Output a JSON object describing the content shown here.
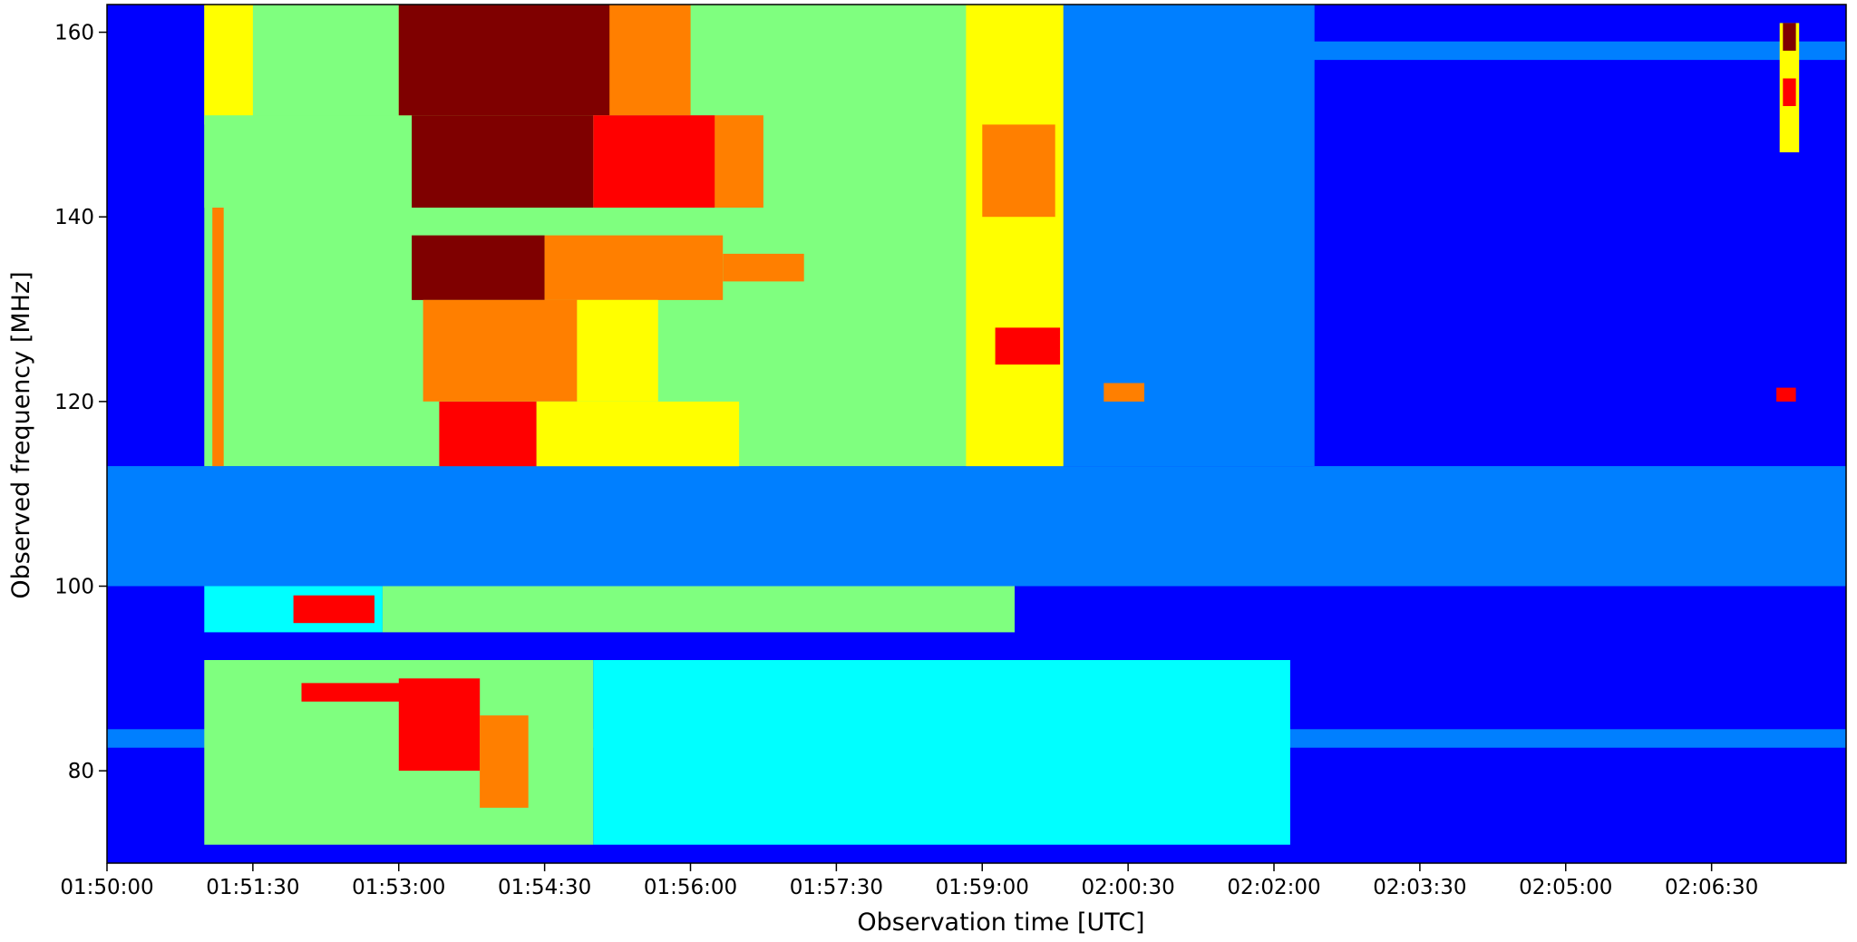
{
  "chart_data": {
    "type": "heatmap",
    "title": "",
    "xlabel": "Observation time [UTC]",
    "ylabel": "Observed frequency [MHz]",
    "x_ticks": [
      "01:50:00",
      "01:51:30",
      "01:53:00",
      "01:54:30",
      "01:56:00",
      "01:57:30",
      "01:59:00",
      "02:00:30",
      "02:02:00",
      "02:03:30",
      "02:05:00",
      "02:06:30"
    ],
    "x_tick_seconds": [
      0,
      90,
      180,
      270,
      360,
      450,
      540,
      630,
      720,
      810,
      900,
      990
    ],
    "xlim_seconds": [
      0,
      1073
    ],
    "y_ticks": [
      80,
      100,
      120,
      140,
      160
    ],
    "ylim": [
      70,
      163
    ],
    "colormap": "jet",
    "colormap_stops": [
      "#00007f",
      "#0000ff",
      "#007fff",
      "#00ffff",
      "#7fff7f",
      "#ffff00",
      "#ff7f00",
      "#ff0000",
      "#7f0000"
    ],
    "background_level": 0.1,
    "emission_regions": [
      {
        "t": [
          60,
          1073
        ],
        "f": [
          157,
          159
        ],
        "level": 0.3
      },
      {
        "t": [
          0,
          1073
        ],
        "f": [
          100,
          113
        ],
        "level": 0.2
      },
      {
        "t": [
          0,
          1073
        ],
        "f": [
          82.5,
          84.5
        ],
        "level": 0.28
      },
      {
        "t": [
          60,
          590
        ],
        "f": [
          113,
          163
        ],
        "level": 0.5
      },
      {
        "t": [
          590,
          745
        ],
        "f": [
          113,
          163
        ],
        "level": 0.28
      },
      {
        "t": [
          530,
          590
        ],
        "f": [
          113,
          163
        ],
        "level": 0.62
      },
      {
        "t": [
          540,
          585
        ],
        "f": [
          140,
          150
        ],
        "level": 0.74
      },
      {
        "t": [
          548,
          588
        ],
        "f": [
          124,
          128
        ],
        "level": 0.82
      },
      {
        "t": [
          65,
          72
        ],
        "f": [
          113,
          163
        ],
        "level": 0.8
      },
      {
        "t": [
          60,
          90
        ],
        "f": [
          150,
          163
        ],
        "level": 0.65
      },
      {
        "t": [
          60,
          200
        ],
        "f": [
          141,
          151
        ],
        "level": 0.45
      },
      {
        "t": [
          180,
          360
        ],
        "f": [
          151,
          163
        ],
        "level": 0.75
      },
      {
        "t": [
          180,
          310
        ],
        "f": [
          151,
          163
        ],
        "level": 0.95
      },
      {
        "t": [
          188,
          300
        ],
        "f": [
          141,
          151
        ],
        "level": 0.98
      },
      {
        "t": [
          300,
          375
        ],
        "f": [
          141,
          151
        ],
        "level": 0.85
      },
      {
        "t": [
          375,
          405
        ],
        "f": [
          141,
          151
        ],
        "level": 0.72
      },
      {
        "t": [
          188,
          270
        ],
        "f": [
          131,
          138
        ],
        "level": 0.95
      },
      {
        "t": [
          270,
          380
        ],
        "f": [
          131,
          138
        ],
        "level": 0.7
      },
      {
        "t": [
          380,
          430
        ],
        "f": [
          133,
          136
        ],
        "level": 0.78
      },
      {
        "t": [
          195,
          290
        ],
        "f": [
          120,
          131
        ],
        "level": 0.8
      },
      {
        "t": [
          290,
          340
        ],
        "f": [
          120,
          131
        ],
        "level": 0.65
      },
      {
        "t": [
          205,
          265
        ],
        "f": [
          113,
          120
        ],
        "level": 0.9
      },
      {
        "t": [
          265,
          390
        ],
        "f": [
          113,
          120
        ],
        "level": 0.65
      },
      {
        "t": [
          60,
          170
        ],
        "f": [
          95,
          100
        ],
        "level": 0.35
      },
      {
        "t": [
          170,
          560
        ],
        "f": [
          95,
          100
        ],
        "level": 0.5
      },
      {
        "t": [
          115,
          165
        ],
        "f": [
          96,
          99
        ],
        "level": 0.85
      },
      {
        "t": [
          60,
          300
        ],
        "f": [
          72,
          92
        ],
        "level": 0.45
      },
      {
        "t": [
          300,
          600
        ],
        "f": [
          72,
          92
        ],
        "level": 0.4
      },
      {
        "t": [
          600,
          730
        ],
        "f": [
          72,
          92
        ],
        "level": 0.33
      },
      {
        "t": [
          120,
          200
        ],
        "f": [
          87.5,
          89.5
        ],
        "level": 0.85
      },
      {
        "t": [
          180,
          230
        ],
        "f": [
          80,
          90
        ],
        "level": 0.9
      },
      {
        "t": [
          230,
          260
        ],
        "f": [
          76,
          86
        ],
        "level": 0.7
      },
      {
        "t": [
          1032,
          1044
        ],
        "f": [
          147,
          161
        ],
        "level": 0.6
      },
      {
        "t": [
          1034,
          1042
        ],
        "f": [
          158,
          161
        ],
        "level": 0.95
      },
      {
        "t": [
          1034,
          1042
        ],
        "f": [
          152,
          155
        ],
        "level": 0.9
      },
      {
        "t": [
          1030,
          1042
        ],
        "f": [
          120,
          121.5
        ],
        "level": 0.85
      },
      {
        "t": [
          615,
          640
        ],
        "f": [
          120,
          122
        ],
        "level": 0.8
      }
    ]
  }
}
